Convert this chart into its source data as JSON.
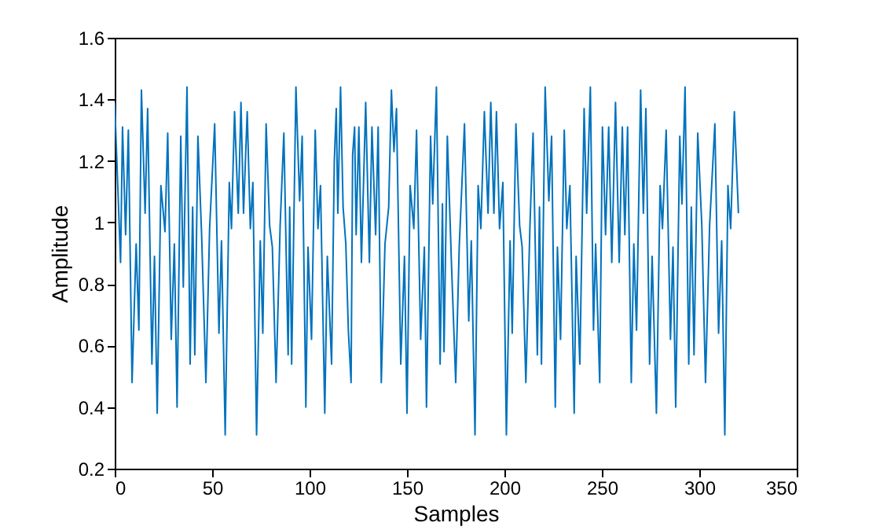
{
  "chart_data": {
    "type": "line",
    "xlabel": "Samples",
    "ylabel": "Amplitude",
    "xlim": [
      0,
      350
    ],
    "xticks": [
      0,
      50,
      100,
      150,
      200,
      250,
      300,
      350
    ],
    "ylim": [
      0.2,
      1.6
    ],
    "yticks": [
      0.2,
      0.4,
      0.6,
      0.8,
      1,
      1.2,
      1.4,
      1.6
    ],
    "line_style": "solid",
    "series": [
      {
        "color": "#0072bd",
        "x": [
          0,
          3,
          4,
          5.6,
          7,
          8.9,
          11,
          12.4,
          13.7,
          15.6,
          16.9,
          19.1,
          20.4,
          21.8,
          23.7,
          25.8,
          27.2,
          29,
          30.6,
          32,
          33.9,
          35.2,
          37.1,
          38.7,
          40,
          41.1,
          42.7,
          44.6,
          46.8,
          48.7,
          51.3,
          53.5,
          54.8,
          56.7,
          58.8,
          59.9,
          61.5,
          63.4,
          64.8,
          66.1,
          68,
          69.6,
          70.9,
          72.8,
          74.7,
          76,
          77.7,
          79.5,
          80.9,
          82.8,
          84.9,
          86.8,
          89,
          89.8,
          90.8,
          93,
          94.9,
          96.2,
          98.1,
          99.2,
          101,
          102.9,
          104.3,
          105.6,
          107.8,
          109.1,
          111.3,
          112.7,
          113.7,
          114.5,
          115.9,
          117.2,
          118.6,
          119.9,
          121.3,
          122.1,
          123.1,
          123.9,
          125.3,
          126.6,
          128.8,
          130.7,
          132,
          133.9,
          135.2,
          136.8,
          138.7,
          140.6,
          142,
          143.3,
          144.6,
          146.8,
          148.7,
          150,
          151.6,
          153.5,
          154.9,
          157,
          158.9,
          160,
          162.1,
          163.2,
          165.1,
          167,
          168.2,
          169,
          170.7,
          172.8,
          175,
          176.8,
          179.5,
          181.7,
          183,
          184.9,
          186.5,
          187.9,
          189.7,
          191.6,
          193,
          194.6,
          195.9,
          197.5,
          199.2,
          201,
          202.9,
          204,
          205.9,
          207.8,
          209.1,
          211,
          213.1,
          214.7,
          216.9,
          218,
          219,
          220.9,
          222.8,
          224.2,
          226.1,
          227.2,
          228.8,
          230.7,
          232,
          233.6,
          235.8,
          236.8,
          238.7,
          240.9,
          242.2,
          244.1,
          245.7,
          246.8,
          248.9,
          250.3,
          251.9,
          253.5,
          255.1,
          257,
          258.9,
          260.5,
          261.8,
          263.2,
          265.1,
          266.4,
          267.8,
          269.9,
          271.3,
          272.6,
          274.5,
          275.8,
          278,
          279.9,
          281.1,
          283,
          285.2,
          286.5,
          287.9,
          290,
          291.1,
          292.7,
          294.6,
          295.9,
          297.3,
          299.2,
          301.3,
          303.2,
          305.3,
          308,
          309.9,
          311.5,
          313.1,
          314.7,
          316.1,
          318,
          320.1
        ],
        "values": [
          1.39,
          0.87,
          1.31,
          0.96,
          1.3,
          0.48,
          0.93,
          0.65,
          1.43,
          1.03,
          1.37,
          0.54,
          0.89,
          0.38,
          1.12,
          0.97,
          1.29,
          0.62,
          0.93,
          0.4,
          1.28,
          0.79,
          1.44,
          0.54,
          1.05,
          0.57,
          1.28,
          0.96,
          0.48,
          0.98,
          1.32,
          0.64,
          0.94,
          0.31,
          1.13,
          0.98,
          1.36,
          1.03,
          1.39,
          1.03,
          1.36,
          0.98,
          1.13,
          0.31,
          0.94,
          0.64,
          1.32,
          0.99,
          0.92,
          0.48,
          0.99,
          1.29,
          0.57,
          1.05,
          0.54,
          1.44,
          1.07,
          1.28,
          0.4,
          0.92,
          0.62,
          1.3,
          0.98,
          1.12,
          0.38,
          0.89,
          0.54,
          1.2,
          1.37,
          1.03,
          1.44,
          1.05,
          0.93,
          0.65,
          0.48,
          1.22,
          1.31,
          0.96,
          1.31,
          0.87,
          1.39,
          0.87,
          1.31,
          0.96,
          1.31,
          0.48,
          0.93,
          1.05,
          1.43,
          1.23,
          1.37,
          0.54,
          0.89,
          0.38,
          1.12,
          0.98,
          1.3,
          0.62,
          0.92,
          0.4,
          1.28,
          1.06,
          1.44,
          0.54,
          1.06,
          0.58,
          1.28,
          0.87,
          0.48,
          0.92,
          1.32,
          0.68,
          0.94,
          0.31,
          1.12,
          0.98,
          1.36,
          1.03,
          1.39,
          1.03,
          1.36,
          0.98,
          1.13,
          0.31,
          0.94,
          0.64,
          1.32,
          0.99,
          0.92,
          0.48,
          0.99,
          1.29,
          0.57,
          1.05,
          0.54,
          1.44,
          1.07,
          1.28,
          0.4,
          0.92,
          0.62,
          1.3,
          0.98,
          1.12,
          0.38,
          0.89,
          0.54,
          1.37,
          1.03,
          1.44,
          0.65,
          0.93,
          0.48,
          1.31,
          0.96,
          1.31,
          0.87,
          1.39,
          0.87,
          1.31,
          0.96,
          1.31,
          0.48,
          0.93,
          0.65,
          1.43,
          1.03,
          1.37,
          0.54,
          0.89,
          0.38,
          1.12,
          0.98,
          1.3,
          0.62,
          0.92,
          0.4,
          1.28,
          1.06,
          1.44,
          0.54,
          1.05,
          0.57,
          1.29,
          0.99,
          0.48,
          0.99,
          1.32,
          0.64,
          0.94,
          0.31,
          1.12,
          0.98,
          1.36,
          1.03
        ]
      }
    ]
  }
}
